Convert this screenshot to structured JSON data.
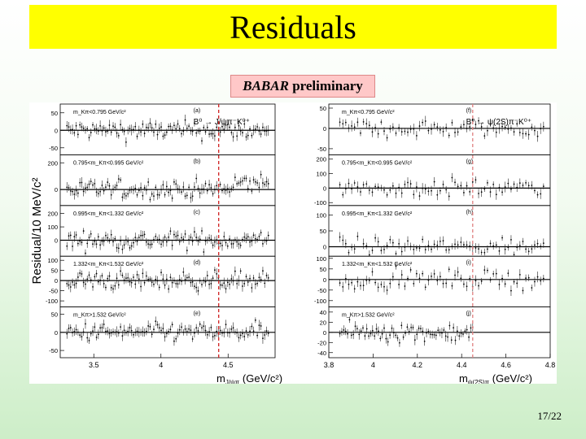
{
  "slide": {
    "title": "Residuals",
    "preliminary_brand": "BABAR",
    "preliminary_text": "preliminary",
    "page_number": "17/22"
  },
  "chart_data": [
    {
      "type": "scatter",
      "side": "left",
      "ylabel": "Residual/10 MeV/c²",
      "xlabel": "m",
      "xlabel_sub": "J/ψπ",
      "xlabel_unit": "(GeV/c²)",
      "process": "B⁰ → J/ψπ⁻K⁰⁺",
      "xlim": [
        3.25,
        4.85
      ],
      "x_ticks": [
        "3.5",
        "4",
        "4.5"
      ],
      "x_tick_values": [
        3.5,
        4.0,
        4.5
      ],
      "threshold_x": 4.43,
      "panels": [
        {
          "tag": "(a)",
          "cut": "m_Kπ<0.795 GeV/c²",
          "ylim": [
            -70,
            75
          ],
          "yticks": [
            50,
            0,
            -50
          ]
        },
        {
          "tag": "(b)",
          "cut": "0.795<m_Kπ<0.995 GeV/c²",
          "ylim": [
            -120,
            260
          ],
          "yticks": [
            200,
            0
          ]
        },
        {
          "tag": "(c)",
          "cut": "0.995<m_Kπ<1.332 GeV/c²",
          "ylim": [
            -120,
            260
          ],
          "yticks": [
            200,
            100,
            0
          ]
        },
        {
          "tag": "(d)",
          "cut": "1.332<m_Kπ<1.532 GeV/c²",
          "ylim": [
            -130,
            120
          ],
          "yticks": [
            100,
            50,
            0,
            -50,
            -100
          ]
        },
        {
          "tag": "(e)",
          "cut": "m_Kπ>1.532 GeV/c²",
          "ylim": [
            -70,
            70
          ],
          "yticks": [
            50,
            0,
            -50
          ]
        }
      ]
    },
    {
      "type": "scatter",
      "side": "right",
      "xlabel": "m",
      "xlabel_sub": "ψ(2S)π",
      "xlabel_unit": "(GeV/c²)",
      "process": "B⁰ → ψ(2S)π⁻K⁰⁺",
      "xlim": [
        3.8,
        4.8
      ],
      "x_ticks": [
        "3.8",
        "4",
        "4.2",
        "4.4",
        "4.6",
        "4.8"
      ],
      "x_tick_values": [
        3.8,
        4.0,
        4.2,
        4.4,
        4.6,
        4.8
      ],
      "threshold_x": 4.45,
      "panels": [
        {
          "tag": "(f)",
          "cut": "m_Kπ<0.795 GeV/c²",
          "ylim": [
            -65,
            60
          ],
          "yticks": [
            50,
            0,
            -50
          ]
        },
        {
          "tag": "(g)",
          "cut": "0.795<m_Kπ<0.995 GeV/c²",
          "ylim": [
            -120,
            230
          ],
          "yticks": [
            200,
            100,
            0,
            -100
          ]
        },
        {
          "tag": "(h)",
          "cut": "0.995<m_Kπ<1.332 GeV/c²",
          "ylim": [
            -30,
            130
          ],
          "yticks": [
            100,
            50,
            0
          ]
        },
        {
          "tag": "(i)",
          "cut": "1.332<m_Kπ<1.532 GeV/c²",
          "ylim": [
            -130,
            110
          ],
          "yticks": [
            100,
            50,
            0,
            -50,
            -100
          ]
        },
        {
          "tag": "(j)",
          "cut": "m_Kπ>1.532 GeV/c²",
          "ylim": [
            -50,
            50
          ],
          "yticks": [
            40,
            20,
            0,
            -20,
            -40
          ]
        }
      ]
    }
  ]
}
